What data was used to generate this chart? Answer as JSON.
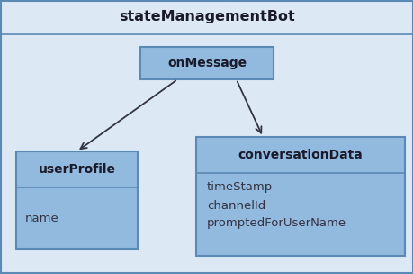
{
  "bg_light": "#dce9f5",
  "bg_lighter": "#e8f1fa",
  "box_fill": "#92b9de",
  "box_stroke": "#5a8ab5",
  "outer_border": "#5a8ab5",
  "title_text": "stateManagementBot",
  "title_fontsize": 11.5,
  "title_fontweight": "bold",
  "onmessage_text": "onMessage",
  "userprofile_text": "userProfile",
  "userprofile_field": "name",
  "conversation_text": "conversationData",
  "conversation_fields": [
    "timeStamp",
    "channelId",
    "promptedForUserName"
  ],
  "class_fontsize": 10,
  "field_fontsize": 9.5,
  "arrow_color": "#333344",
  "text_color": "#1a1a2a",
  "field_color": "#333344"
}
